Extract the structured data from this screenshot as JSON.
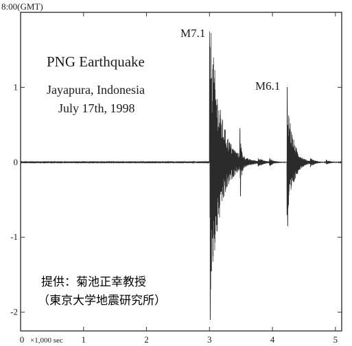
{
  "chart_data": {
    "type": "line",
    "title": "PNG Earthquake",
    "subtitle_lines": [
      "Jayapura, Indonesia",
      "July 17th, 1998"
    ],
    "start_time_label": "8:00(GMT)",
    "x_axis_unit_label": "×1,000 sec",
    "xlim": [
      0,
      5.1
    ],
    "ylim": [
      -2.25,
      2.0
    ],
    "x_ticks": [
      0,
      1,
      2,
      3,
      4,
      5
    ],
    "y_ticks": [
      -2,
      -1,
      0,
      1
    ],
    "annotations": [
      {
        "text": "M7.1",
        "x": 3.02,
        "y": 1.55
      },
      {
        "text": "M6.1",
        "x": 4.24,
        "y": 1.0
      }
    ],
    "credit_lines": [
      "提供：菊池正幸教授",
      "（東京大学地震研究所）"
    ],
    "events": [
      {
        "onset": 3.0,
        "peak_max": 1.55,
        "peak_min": -2.1
      },
      {
        "onset": 3.48,
        "peak_max": 0.45,
        "peak_min": -0.45
      },
      {
        "onset": 4.23,
        "peak_max": 1.0,
        "peak_min": -0.85
      }
    ],
    "colors": {
      "trace": "#2b2b2b",
      "axes": "#333333",
      "background": "#ffffff"
    }
  }
}
